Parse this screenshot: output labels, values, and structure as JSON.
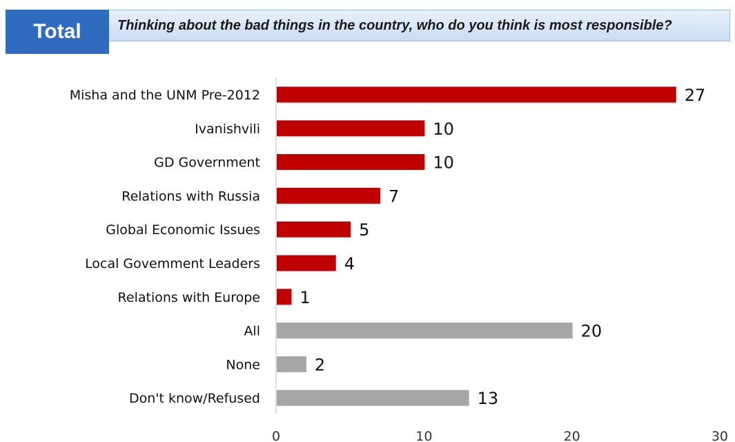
{
  "header": {
    "tab_label": "Total",
    "question": "Thinking about the bad things in the country, who do you think is most responsible?"
  },
  "colors": {
    "header_blue": "#2f6bbf",
    "bar_red": "#c00000",
    "bar_gray": "#a6a6a6"
  },
  "chart_data": {
    "type": "bar",
    "orientation": "horizontal",
    "title": "Thinking about the bad things in the country, who do you think is most responsible?",
    "categories": [
      "Misha and the UNM Pre-2012",
      "Ivanishvili",
      "GD Government",
      "Relations with Russia",
      "Global Economic Issues",
      "Local Govemment Leaders",
      "Relations with Europe",
      "All",
      "None",
      "Don't know/Refused"
    ],
    "values": [
      27,
      10,
      10,
      7,
      5,
      4,
      1,
      20,
      2,
      13
    ],
    "bar_colors": [
      "#c00000",
      "#c00000",
      "#c00000",
      "#c00000",
      "#c00000",
      "#c00000",
      "#c00000",
      "#a6a6a6",
      "#a6a6a6",
      "#a6a6a6"
    ],
    "xlim": [
      0,
      30
    ],
    "x_ticks": [
      0,
      10,
      20,
      30
    ],
    "xlabel": "",
    "ylabel": "",
    "grid": false,
    "legend": "none"
  }
}
